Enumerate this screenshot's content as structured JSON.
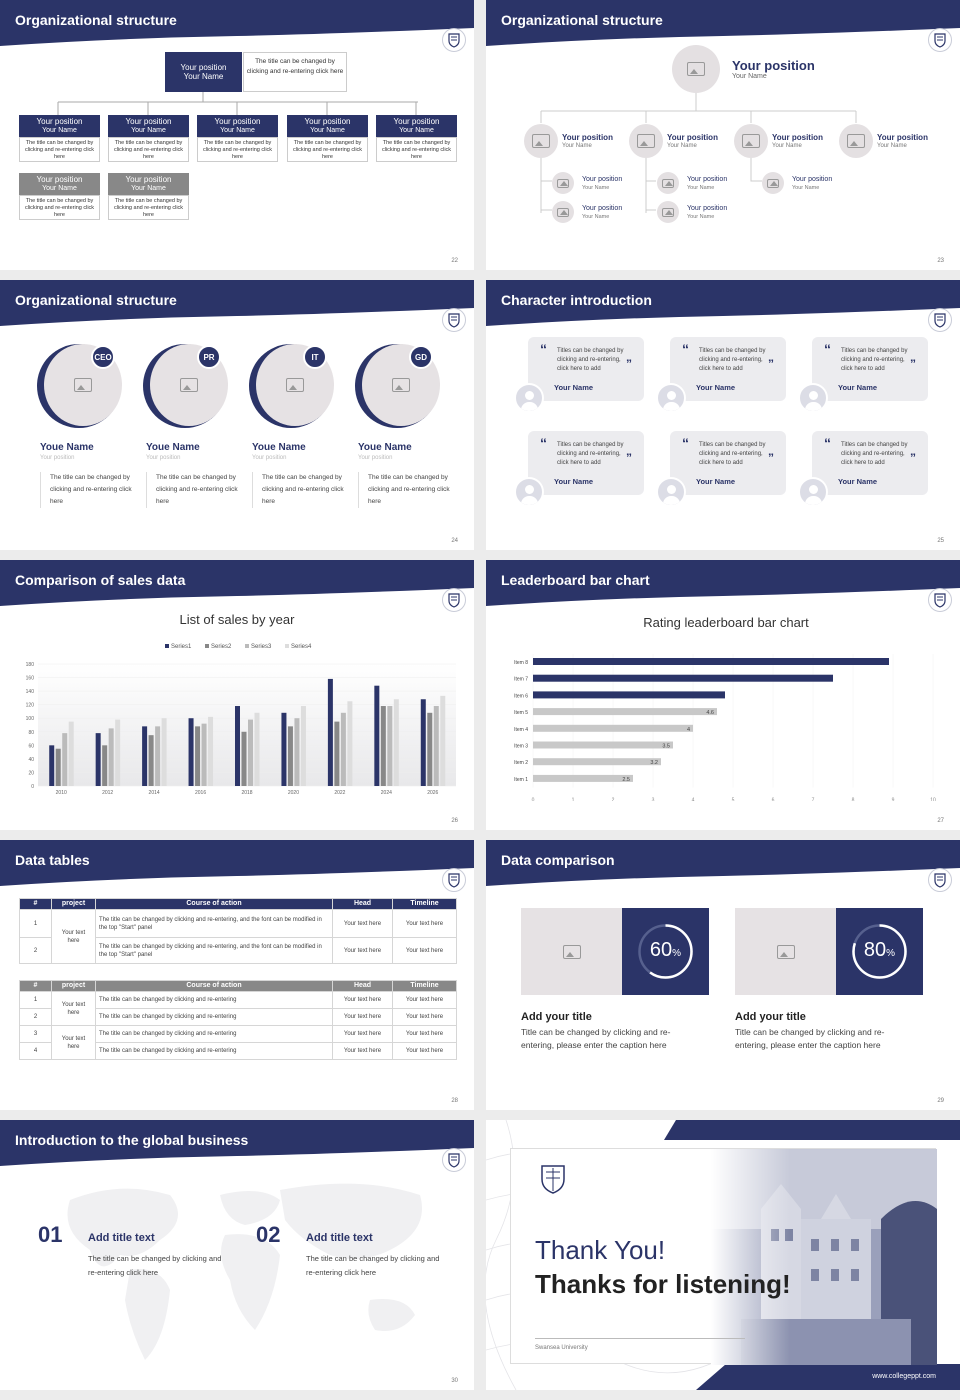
{
  "colors": {
    "navy": "#2b3468",
    "gray": "#888888",
    "light": "#e8e4e6"
  },
  "s22": {
    "title": "Organizational structure",
    "top": {
      "pos": "Your position",
      "name": "Your Name",
      "desc": "The title can be changed by clicking and re-entering click here"
    },
    "boxes": [
      {
        "pos": "Your position",
        "name": "Your Name",
        "desc": "The title can be changed by clicking and re-entering click here"
      },
      {
        "pos": "Your position",
        "name": "Your Name",
        "desc": "The title can be changed by clicking and re-entering click here"
      },
      {
        "pos": "Your position",
        "name": "Your Name",
        "desc": "The title can be changed by clicking and re-entering click here"
      },
      {
        "pos": "Your position",
        "name": "Your Name",
        "desc": "The title can be changed by clicking and re-entering click here"
      },
      {
        "pos": "Your position",
        "name": "Your Name",
        "desc": "The title can be changed by clicking and re-entering click here"
      },
      {
        "pos": "Your position",
        "name": "Your Name",
        "desc": "The title can be changed by clicking and re-entering click here"
      },
      {
        "pos": "Your position",
        "name": "Your Name",
        "desc": "The title can be changed by clicking and re-entering click here"
      }
    ],
    "page": "22"
  },
  "s23": {
    "title": "Organizational structure",
    "top": {
      "pos": "Your position",
      "name": "Your Name"
    },
    "level": [
      {
        "pos": "Your position",
        "name": "Your Name"
      },
      {
        "pos": "Your position",
        "name": "Your Name"
      },
      {
        "pos": "Your position",
        "name": "Your Name"
      },
      {
        "pos": "Your position",
        "name": "Your Name"
      }
    ],
    "sub": [
      {
        "pos": "Your position",
        "name": "Your Name"
      },
      {
        "pos": "Your position",
        "name": "Your Name"
      },
      {
        "pos": "Your position",
        "name": "Your Name"
      },
      {
        "pos": "Your position",
        "name": "Your Name"
      },
      {
        "pos": "Your position",
        "name": "Your Name"
      }
    ],
    "page": "23"
  },
  "s24": {
    "title": "Organizational structure",
    "people": [
      {
        "tag": "CEO",
        "name": "Youe Name",
        "pos": "Your position",
        "desc": "The title can be changed by clicking and re-entering click here"
      },
      {
        "tag": "PR",
        "name": "Youe Name",
        "pos": "Your position",
        "desc": "The title can be changed by clicking and re-entering click here"
      },
      {
        "tag": "IT",
        "name": "Youe Name",
        "pos": "Your position",
        "desc": "The title can be changed by clicking and re-entering click here"
      },
      {
        "tag": "GD",
        "name": "Youe Name",
        "pos": "Your position",
        "desc": "The title can be changed by clicking and re-entering click here"
      }
    ],
    "page": "24"
  },
  "s25": {
    "title": "Character introduction",
    "quote": "Titles can be changed by clicking and re-entering, click here to add",
    "name": "Your Name",
    "page": "25"
  },
  "s26": {
    "title": "Comparison of sales data",
    "page": "26"
  },
  "s27": {
    "title": "Leaderboard bar chart",
    "page": "27"
  },
  "s28": {
    "title": "Data tables",
    "page": "28",
    "headers": [
      "#",
      "project",
      "Course of action",
      "Head",
      "Timeline"
    ],
    "t1": {
      "project": "Your text here",
      "rows": [
        {
          "n": "1",
          "course": "The title can be changed by clicking and re-entering, and the font can be modified in the top \"Start\" panel",
          "head": "Your text here",
          "time": "Your text here"
        },
        {
          "n": "2",
          "course": "The title can be changed by clicking and re-entering, and the font can be modified in the top \"Start\" panel",
          "head": "Your text here",
          "time": "Your text here"
        }
      ]
    },
    "t2": {
      "projects": [
        "Your text here",
        "Your text here"
      ],
      "rows": [
        {
          "n": "1",
          "course": "The title can be changed by clicking and re-entering",
          "head": "Your text here",
          "time": "Your text here"
        },
        {
          "n": "2",
          "course": "The title can be changed by clicking and re-entering",
          "head": "Your text here",
          "time": "Your text here"
        },
        {
          "n": "3",
          "course": "The title can be changed by clicking and re-entering",
          "head": "Your text here",
          "time": "Your text here"
        },
        {
          "n": "4",
          "course": "The title can be changed by clicking and re-entering",
          "head": "Your text here",
          "time": "Your text here"
        }
      ]
    }
  },
  "s29": {
    "title": "Data comparison",
    "page": "29",
    "cards": [
      {
        "pct": "60",
        "pct_frac": 0.6,
        "unit": "%",
        "title": "Add your title",
        "desc": "Title can be changed by clicking and re-entering, please enter the caption here"
      },
      {
        "pct": "80",
        "pct_frac": 0.8,
        "unit": "%",
        "title": "Add your title",
        "desc": "Title can be changed by clicking and re-entering, please enter the caption here"
      }
    ]
  },
  "s30": {
    "title": "Introduction to the global business",
    "page": "30",
    "items": [
      {
        "num": "01",
        "title": "Add title text",
        "desc": "The title can be changed by clicking and re-entering click here"
      },
      {
        "num": "02",
        "title": "Add title text",
        "desc": "The title can be changed by clicking and re-entering click here"
      }
    ]
  },
  "s31": {
    "line1": "Thank You!",
    "line2": "Thanks for listening!",
    "uni": "Swansea University",
    "site": "www.collegeppt.com"
  },
  "chart_data": [
    {
      "type": "bar",
      "title": "List of sales by year",
      "categories": [
        "2010",
        "2012",
        "2014",
        "2016",
        "2018",
        "2020",
        "2022",
        "2024",
        "2026"
      ],
      "series": [
        {
          "name": "Series1",
          "values": [
            60,
            78,
            88,
            100,
            118,
            108,
            158,
            148,
            128
          ]
        },
        {
          "name": "Series2",
          "values": [
            55,
            60,
            75,
            88,
            80,
            88,
            95,
            118,
            108
          ]
        },
        {
          "name": "Series3",
          "values": [
            78,
            85,
            88,
            92,
            98,
            100,
            108,
            118,
            118
          ]
        },
        {
          "name": "Series4",
          "values": [
            95,
            98,
            100,
            102,
            108,
            118,
            125,
            128,
            133
          ]
        }
      ],
      "yticks": [
        "0",
        "20",
        "40",
        "60",
        "80",
        "100",
        "120",
        "140",
        "160",
        "180"
      ],
      "ylim": [
        0,
        180
      ],
      "legend": "top"
    },
    {
      "type": "bar",
      "orientation": "horizontal",
      "title": "Rating leaderboard bar chart",
      "categories": [
        "Item 1",
        "Item 2",
        "Item 3",
        "Item 4",
        "Item 5",
        "Item 6",
        "Item 7",
        "Item 8"
      ],
      "values": [
        2.5,
        3.2,
        3.5,
        4,
        4.6,
        4.8,
        7.5,
        8.9
      ],
      "labels": [
        "2.5",
        "3.2",
        "3.5",
        "4",
        "4.6",
        "",
        "",
        ""
      ],
      "xticks": [
        "0",
        "1",
        "2",
        "3",
        "4",
        "5",
        "6",
        "7",
        "8",
        "9",
        "10"
      ],
      "xlim": [
        0,
        10
      ]
    }
  ]
}
